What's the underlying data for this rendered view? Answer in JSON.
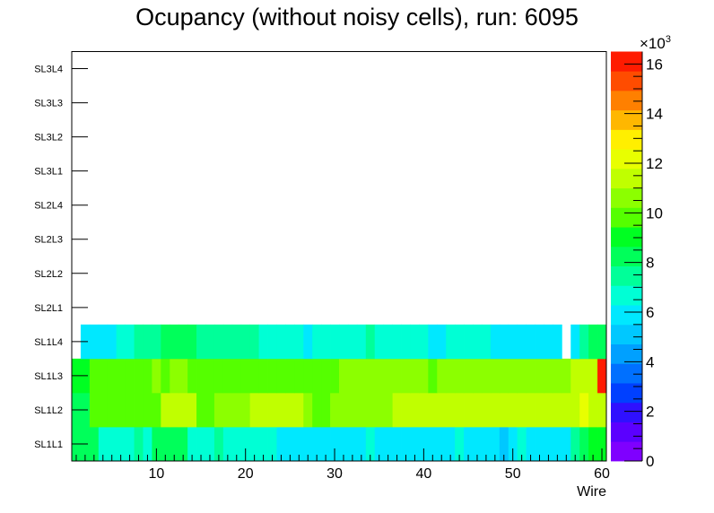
{
  "chart_data": {
    "type": "heatmap",
    "title": "Ocupancy (without noisy cells), run: 6095",
    "xlabel": "Wire",
    "ylabel": "",
    "x_ticks": [
      "10",
      "20",
      "30",
      "40",
      "50",
      "60"
    ],
    "xlim": [
      0.5,
      60.5
    ],
    "y_labels": [
      "SL1L1",
      "SL1L2",
      "SL1L3",
      "SL1L4",
      "SL2L1",
      "SL2L2",
      "SL2L3",
      "SL2L4",
      "SL3L1",
      "SL3L2",
      "SL3L3",
      "SL3L4"
    ],
    "z_multiplier": "×10",
    "z_multiplier_exp": "3",
    "z_ticks": [
      "0",
      "2",
      "4",
      "6",
      "8",
      "10",
      "12",
      "14",
      "16"
    ],
    "zlim": [
      0,
      16.5
    ],
    "palette": [
      "#7f00ff",
      "#5b00ff",
      "#2f10ff",
      "#0040ff",
      "#0070ff",
      "#00a0ff",
      "#00c8ff",
      "#00e8ff",
      "#00ffd5",
      "#00ff99",
      "#00ff5a",
      "#00ff22",
      "#55ff00",
      "#8cff00",
      "#c0ff00",
      "#e8ff00",
      "#ffef00",
      "#ffb700",
      "#ff8000",
      "#ff4c00",
      "#ff1b00"
    ],
    "grid": false,
    "values": [
      [
        8.2,
        8.2,
        7.9,
        6.6,
        6.6,
        6.6,
        6.6,
        7.3,
        6.6,
        7.9,
        7.9,
        7.9,
        7.9,
        6.6,
        6.6,
        6.6,
        7.5,
        6.6,
        6.6,
        6.6,
        6.6,
        6.6,
        6.6,
        5.9,
        5.9,
        5.9,
        5.9,
        5.9,
        5.9,
        5.9,
        5.9,
        5.9,
        5.9,
        6.6,
        5.9,
        5.9,
        5.9,
        5.9,
        5.9,
        5.9,
        5.9,
        5.9,
        5.9,
        6.5,
        5.9,
        5.9,
        5.9,
        5.9,
        5.2,
        5.9,
        6.4,
        5.9,
        5.9,
        5.9,
        5.9,
        5.9,
        7.3,
        8.2,
        8.8,
        8.8
      ],
      [
        8.2,
        8.2,
        9.5,
        9.5,
        9.5,
        9.5,
        9.5,
        9.5,
        9.5,
        9.5,
        11.0,
        11.0,
        11.0,
        11.0,
        9.5,
        9.5,
        10.4,
        10.4,
        10.4,
        10.4,
        11.0,
        11.0,
        11.0,
        11.0,
        11.0,
        11.0,
        10.4,
        9.5,
        9.5,
        10.4,
        10.4,
        10.4,
        10.4,
        10.4,
        10.4,
        10.4,
        11.0,
        11.0,
        11.0,
        11.0,
        11.0,
        11.0,
        11.0,
        11.0,
        11.0,
        11.0,
        11.0,
        11.0,
        11.0,
        11.0,
        11.0,
        11.0,
        11.0,
        11.0,
        11.0,
        11.0,
        11.0,
        12.0,
        11.0,
        11.0
      ],
      [
        8.9,
        8.9,
        9.5,
        9.5,
        9.5,
        9.5,
        9.5,
        9.5,
        10.0,
        10.4,
        10.0,
        10.4,
        10.4,
        9.5,
        9.5,
        9.5,
        10.0,
        10.0,
        10.0,
        10.0,
        10.0,
        10.0,
        10.0,
        10.0,
        10.0,
        10.0,
        10.0,
        10.0,
        10.0,
        10.0,
        10.4,
        10.4,
        10.4,
        10.4,
        10.4,
        10.4,
        10.4,
        10.4,
        10.4,
        10.4,
        10.0,
        10.4,
        10.4,
        10.4,
        10.4,
        10.4,
        10.4,
        10.4,
        10.4,
        10.4,
        10.4,
        10.4,
        10.4,
        10.4,
        10.4,
        10.4,
        11.0,
        11.0,
        11.0,
        16.5
      ],
      [
        null,
        5.9,
        5.9,
        5.9,
        5.9,
        6.6,
        6.6,
        7.3,
        7.5,
        7.5,
        8.6,
        8.2,
        8.6,
        8.6,
        7.5,
        7.5,
        7.5,
        7.5,
        7.5,
        7.5,
        7.5,
        6.6,
        6.6,
        6.6,
        6.6,
        6.6,
        5.9,
        6.6,
        6.6,
        6.6,
        6.6,
        6.6,
        6.6,
        7.3,
        6.6,
        6.6,
        6.6,
        6.6,
        6.6,
        6.6,
        5.9,
        5.9,
        6.6,
        6.6,
        6.6,
        6.6,
        6.6,
        5.9,
        5.9,
        5.9,
        5.9,
        5.9,
        5.9,
        5.9,
        5.9,
        null,
        5.9,
        7.3,
        8.6,
        8.2
      ],
      [
        null,
        null,
        null,
        null,
        null,
        null,
        null,
        null,
        null,
        null,
        null,
        null,
        null,
        null,
        null,
        null,
        null,
        null,
        null,
        null,
        null,
        null,
        null,
        null,
        null,
        null,
        null,
        null,
        null,
        null,
        null,
        null,
        null,
        null,
        null,
        null,
        null,
        null,
        null,
        null,
        null,
        null,
        null,
        null,
        null,
        null,
        null,
        null,
        null,
        null,
        null,
        null,
        null,
        null,
        null,
        null,
        null,
        null,
        null,
        null
      ],
      [
        null,
        null,
        null,
        null,
        null,
        null,
        null,
        null,
        null,
        null,
        null,
        null,
        null,
        null,
        null,
        null,
        null,
        null,
        null,
        null,
        null,
        null,
        null,
        null,
        null,
        null,
        null,
        null,
        null,
        null,
        null,
        null,
        null,
        null,
        null,
        null,
        null,
        null,
        null,
        null,
        null,
        null,
        null,
        null,
        null,
        null,
        null,
        null,
        null,
        null,
        null,
        null,
        null,
        null,
        null,
        null,
        null,
        null,
        null,
        null
      ],
      [
        null,
        null,
        null,
        null,
        null,
        null,
        null,
        null,
        null,
        null,
        null,
        null,
        null,
        null,
        null,
        null,
        null,
        null,
        null,
        null,
        null,
        null,
        null,
        null,
        null,
        null,
        null,
        null,
        null,
        null,
        null,
        null,
        null,
        null,
        null,
        null,
        null,
        null,
        null,
        null,
        null,
        null,
        null,
        null,
        null,
        null,
        null,
        null,
        null,
        null,
        null,
        null,
        null,
        null,
        null,
        null,
        null,
        null,
        null,
        null
      ],
      [
        null,
        null,
        null,
        null,
        null,
        null,
        null,
        null,
        null,
        null,
        null,
        null,
        null,
        null,
        null,
        null,
        null,
        null,
        null,
        null,
        null,
        null,
        null,
        null,
        null,
        null,
        null,
        null,
        null,
        null,
        null,
        null,
        null,
        null,
        null,
        null,
        null,
        null,
        null,
        null,
        null,
        null,
        null,
        null,
        null,
        null,
        null,
        null,
        null,
        null,
        null,
        null,
        null,
        null,
        null,
        null,
        null,
        null,
        null,
        null
      ],
      [
        null,
        null,
        null,
        null,
        null,
        null,
        null,
        null,
        null,
        null,
        null,
        null,
        null,
        null,
        null,
        null,
        null,
        null,
        null,
        null,
        null,
        null,
        null,
        null,
        null,
        null,
        null,
        null,
        null,
        null,
        null,
        null,
        null,
        null,
        null,
        null,
        null,
        null,
        null,
        null,
        null,
        null,
        null,
        null,
        null,
        null,
        null,
        null,
        null,
        null,
        null,
        null,
        null,
        null,
        null,
        null,
        null,
        null,
        null,
        null
      ],
      [
        null,
        null,
        null,
        null,
        null,
        null,
        null,
        null,
        null,
        null,
        null,
        null,
        null,
        null,
        null,
        null,
        null,
        null,
        null,
        null,
        null,
        null,
        null,
        null,
        null,
        null,
        null,
        null,
        null,
        null,
        null,
        null,
        null,
        null,
        null,
        null,
        null,
        null,
        null,
        null,
        null,
        null,
        null,
        null,
        null,
        null,
        null,
        null,
        null,
        null,
        null,
        null,
        null,
        null,
        null,
        null,
        null,
        null,
        null,
        null
      ],
      [
        null,
        null,
        null,
        null,
        null,
        null,
        null,
        null,
        null,
        null,
        null,
        null,
        null,
        null,
        null,
        null,
        null,
        null,
        null,
        null,
        null,
        null,
        null,
        null,
        null,
        null,
        null,
        null,
        null,
        null,
        null,
        null,
        null,
        null,
        null,
        null,
        null,
        null,
        null,
        null,
        null,
        null,
        null,
        null,
        null,
        null,
        null,
        null,
        null,
        null,
        null,
        null,
        null,
        null,
        null,
        null,
        null,
        null,
        null,
        null
      ],
      [
        null,
        null,
        null,
        null,
        null,
        null,
        null,
        null,
        null,
        null,
        null,
        null,
        null,
        null,
        null,
        null,
        null,
        null,
        null,
        null,
        null,
        null,
        null,
        null,
        null,
        null,
        null,
        null,
        null,
        null,
        null,
        null,
        null,
        null,
        null,
        null,
        null,
        null,
        null,
        null,
        null,
        null,
        null,
        null,
        null,
        null,
        null,
        null,
        null,
        null,
        null,
        null,
        null,
        null,
        null,
        null,
        null,
        null,
        null,
        null
      ]
    ]
  }
}
